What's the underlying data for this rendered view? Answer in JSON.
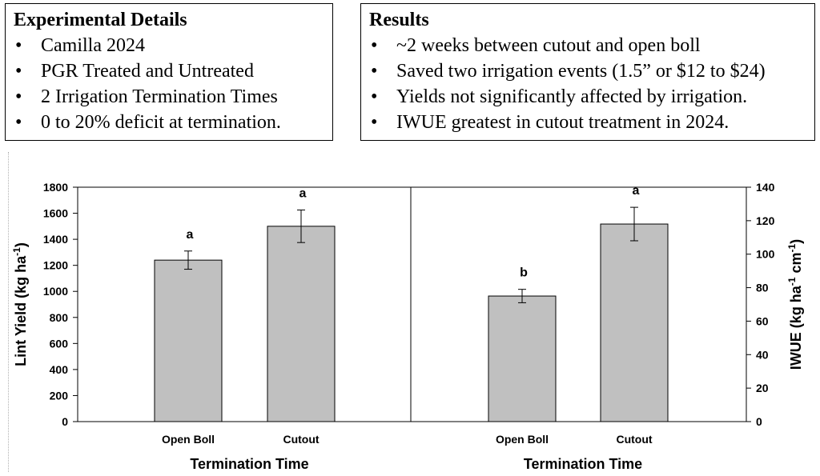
{
  "details": {
    "title": "Experimental Details",
    "items": [
      "Camilla 2024",
      "PGR Treated and Untreated",
      "2 Irrigation Termination Times",
      "0 to 20% deficit at termination."
    ]
  },
  "results": {
    "title": "Results",
    "items": [
      "~2 weeks between cutout and open boll",
      "Saved two irrigation events (1.5” or $12 to $24)",
      "Yields not significantly affected by irrigation.",
      "IWUE greatest in cutout treatment in 2024."
    ]
  },
  "colors": {
    "bar": "#c0c0c0",
    "axis": "#000000"
  },
  "chart_data": [
    {
      "type": "bar",
      "categories": [
        "Open Boll",
        "Cutout"
      ],
      "values": [
        1240,
        1500
      ],
      "error": [
        70,
        125
      ],
      "labels": [
        "a",
        "a"
      ],
      "xlabel": "Termination Time",
      "ylabel_main": "Lint Yield (kg ha",
      "ylabel_sup": "-1",
      "ylabel_tail": ")",
      "ylim": [
        0,
        1800
      ],
      "yticks": [
        0,
        200,
        400,
        600,
        800,
        1000,
        1200,
        1400,
        1600,
        1800
      ],
      "axis_side": "left"
    },
    {
      "type": "bar",
      "categories": [
        "Open Boll",
        "Cutout"
      ],
      "values": [
        75,
        118
      ],
      "error": [
        4,
        10
      ],
      "labels": [
        "b",
        "a"
      ],
      "xlabel": "Termination Time",
      "ylabel_main": "IWUE (kg ha",
      "ylabel_sup": "-1",
      "ylabel_mid": " cm",
      "ylabel_sup2": "-1",
      "ylabel_tail": ")",
      "ylim": [
        0,
        140
      ],
      "yticks": [
        0,
        20,
        40,
        60,
        80,
        100,
        120,
        140
      ],
      "axis_side": "right"
    }
  ]
}
